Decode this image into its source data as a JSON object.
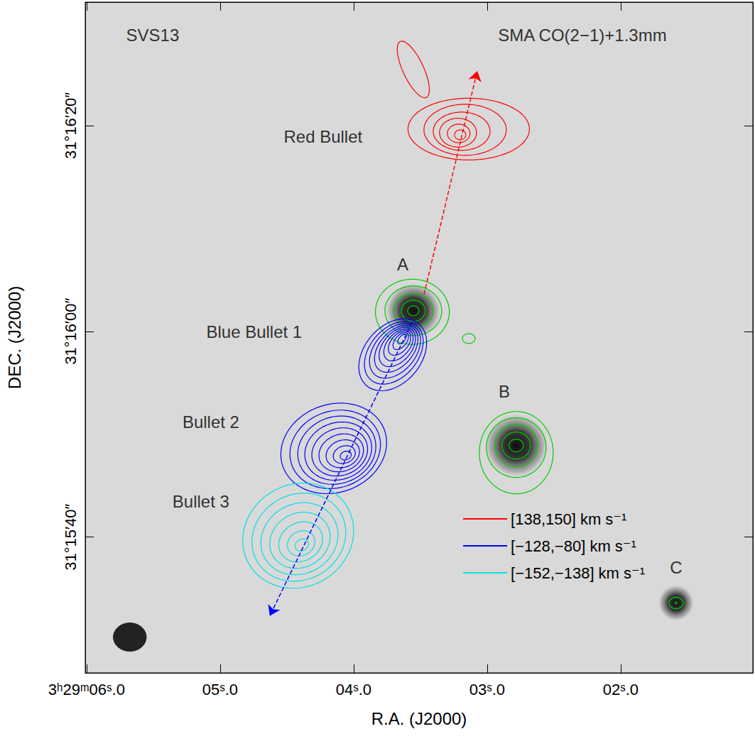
{
  "chart_data": {
    "type": "contour_map",
    "xlabel": "R.A. (J2000)",
    "ylabel": "DEC. (J2000)",
    "xlim": [
      6.01,
      1.01
    ],
    "xticks": [
      {
        "value": 6,
        "label": "3ʰ29ᵐ06ˢ.0"
      },
      {
        "value": 5,
        "label": "05ˢ.0"
      },
      {
        "value": 4,
        "label": "04ˢ.0"
      },
      {
        "value": 3,
        "label": "03ˢ.0"
      },
      {
        "value": 2,
        "label": "02ˢ.0"
      }
    ],
    "ylim": [
      26.8,
      92.0
    ],
    "yticks": [
      {
        "value": 40,
        "label": "31°15′40″"
      },
      {
        "value": 60,
        "label": "31°16′00″"
      },
      {
        "value": 80,
        "label": "31°16′20″"
      }
    ],
    "legend": "bottom-right",
    "series": [
      {
        "name": "[138,150] km s⁻¹",
        "color": "#ff0000",
        "contours": [
          [
            3.202,
            79.1,
            0.55,
            0.48,
            90
          ],
          [
            3.213,
            79.24,
            1.1,
            0.9,
            90
          ],
          [
            3.218,
            79.31,
            1.8,
            1.4,
            90
          ],
          [
            3.191,
            79.45,
            2.76,
            1.86,
            90
          ],
          [
            3.165,
            79.59,
            4.0,
            2.48,
            90
          ],
          [
            3.138,
            79.66,
            5.9,
            3.0,
            90
          ],
          [
            3.553,
            85.45,
            3.0,
            1.0,
            25
          ]
        ]
      },
      {
        "name": "[−128,−80] km s⁻¹",
        "color": "#0000ff",
        "contours": [
          [
            3.638,
            59.24,
            0.55,
            0.28,
            140
          ],
          [
            3.647,
            59.05,
            0.97,
            0.55,
            140
          ],
          [
            3.656,
            58.86,
            1.38,
            0.83,
            140
          ],
          [
            3.664,
            58.67,
            1.79,
            1.1,
            140
          ],
          [
            3.673,
            58.48,
            2.21,
            1.38,
            140
          ],
          [
            3.681,
            58.29,
            2.62,
            1.66,
            140
          ],
          [
            3.69,
            58.1,
            3.03,
            2.0,
            140
          ],
          [
            3.699,
            57.91,
            3.45,
            2.34,
            140
          ],
          [
            3.707,
            57.72,
            3.93,
            2.76,
            140
          ],
          [
            4.059,
            47.93,
            0.55,
            0.41,
            110
          ],
          [
            4.07,
            48.02,
            1.1,
            0.83,
            110
          ],
          [
            4.081,
            48.1,
            1.66,
            1.31,
            110
          ],
          [
            4.093,
            48.19,
            2.21,
            1.79,
            110
          ],
          [
            4.104,
            48.28,
            2.76,
            2.28,
            110
          ],
          [
            4.115,
            48.36,
            3.31,
            2.76,
            110
          ],
          [
            4.126,
            48.45,
            3.86,
            3.24,
            110
          ],
          [
            4.138,
            48.53,
            4.48,
            3.72,
            110
          ],
          [
            4.149,
            48.62,
            5.24,
            4.28,
            110
          ]
        ]
      },
      {
        "name": "[−152,−138] km s⁻¹",
        "color": "#00e0e0",
        "contours": [
          [
            4.388,
            39.24,
            0.69,
            0.55,
            120
          ],
          [
            4.393,
            39.39,
            1.38,
            1.17,
            120
          ],
          [
            4.397,
            39.54,
            2.21,
            1.86,
            120
          ],
          [
            4.402,
            39.69,
            3.03,
            2.62,
            120
          ],
          [
            4.406,
            39.84,
            3.86,
            3.38,
            120
          ],
          [
            4.41,
            39.99,
            4.69,
            4.14,
            120
          ],
          [
            4.415,
            40.14,
            5.52,
            4.97,
            120
          ]
        ]
      }
    ],
    "continuum": {
      "color": "#00cc00",
      "sources": [
        [
          3.553,
          62.0,
          2.8
        ],
        [
          2.782,
          48.9,
          3.2
        ],
        [
          1.585,
          33.6,
          1.8
        ]
      ],
      "contours": [
        [
          3.553,
          62.0,
          0.55,
          0.48,
          90
        ],
        [
          3.553,
          62.0,
          1.17,
          1.03,
          90
        ],
        [
          3.553,
          62.0,
          1.93,
          1.66,
          90
        ],
        [
          3.553,
          62.0,
          2.76,
          2.41,
          90
        ],
        [
          3.56,
          61.9,
          3.59,
          3.17,
          90
        ],
        [
          3.138,
          59.3,
          0.62,
          0.48,
          90
        ],
        [
          2.782,
          48.9,
          0.69,
          0.62,
          90
        ],
        [
          2.782,
          48.9,
          1.38,
          1.31,
          90
        ],
        [
          2.782,
          48.9,
          2.07,
          2.07,
          90
        ],
        [
          2.782,
          48.7,
          2.9,
          2.9,
          90
        ],
        [
          2.782,
          48.21,
          3.59,
          4.0,
          90
        ],
        [
          1.585,
          33.6,
          0.69,
          0.55,
          90
        ],
        [
          1.585,
          33.6,
          0.1,
          0.1,
          90
        ]
      ]
    },
    "beam": [
      5.676,
      30.28,
      1.6,
      1.38,
      90
    ],
    "arrows": [
      {
        "color": "#ff0000",
        "line_style": "dashed",
        "from": [
          3.473,
          63.59
        ],
        "to": [
          3.074,
          85.31
        ]
      },
      {
        "color": "#0000ff",
        "line_style": "dashed",
        "from": [
          3.564,
          60.83
        ],
        "to": [
          4.628,
          32.34
        ]
      }
    ],
    "annotations": [
      {
        "text": "SVS13",
        "x": 5.505,
        "y": 88.76
      },
      {
        "text": "SMA CO(2−1)+1.3mm",
        "x": 2.287,
        "y": 88.76
      },
      {
        "text": "Red Bullet",
        "x": 4.229,
        "y": 78.9
      },
      {
        "text": "A",
        "x": 3.633,
        "y": 66.48
      },
      {
        "text": "Blue Bullet 1",
        "x": 4.745,
        "y": 59.93
      },
      {
        "text": "Bullet 2",
        "x": 5.069,
        "y": 51.17
      },
      {
        "text": "Bullet 3",
        "x": 5.144,
        "y": 43.45
      },
      {
        "text": "B",
        "x": 2.872,
        "y": 54.14
      },
      {
        "text": "C",
        "x": 1.585,
        "y": 37.03
      }
    ]
  }
}
